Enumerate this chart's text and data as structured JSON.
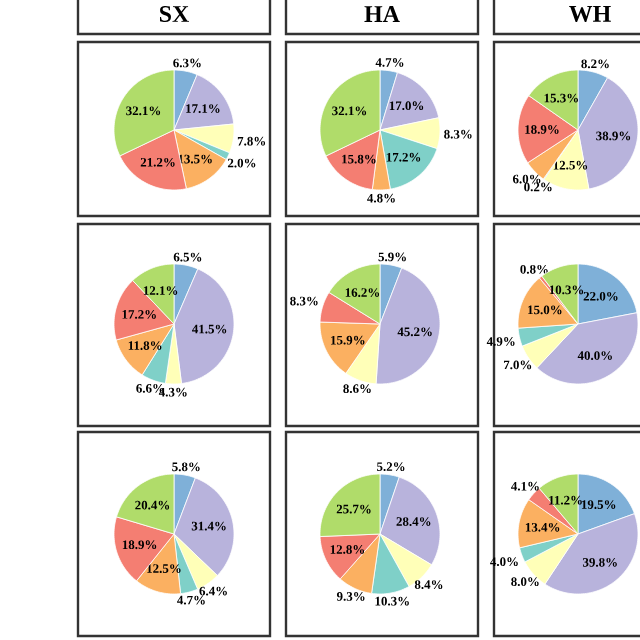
{
  "chart_data": [
    {
      "type": "pie",
      "title": "SX",
      "categories": [
        null,
        null,
        null,
        null,
        null,
        null,
        null
      ],
      "values": [
        6.3,
        17.1,
        7.8,
        2.0,
        13.5,
        21.2,
        32.1
      ],
      "colors": [
        "#7fb0d8",
        "#b8b3dc",
        "#ffffb8",
        "#7fd0c8",
        "#fbb061",
        "#f47e72",
        "#b0dc6a"
      ],
      "value_labels": [
        "6.3%",
        "17.1%",
        "7.8%",
        "2.0%",
        "13.5%",
        "21.2%",
        "32.1%"
      ]
    },
    {
      "type": "pie",
      "title": "HA",
      "categories": [
        null,
        null,
        null,
        null,
        null,
        null,
        null
      ],
      "values": [
        4.7,
        17.0,
        8.3,
        17.2,
        4.8,
        15.8,
        32.1
      ],
      "colors": [
        "#7fb0d8",
        "#b8b3dc",
        "#ffffb8",
        "#7fd0c8",
        "#fbb061",
        "#f47e72",
        "#b0dc6a"
      ],
      "value_labels": [
        "4.7%",
        "17.0%",
        "8.3%",
        "17.2%",
        "4.8%",
        "15.8%",
        "32.1%"
      ]
    },
    {
      "type": "pie",
      "title": "WH",
      "categories": [
        null,
        null,
        null,
        null,
        null,
        null,
        null
      ],
      "values": [
        8.2,
        38.9,
        12.5,
        0.2,
        6.0,
        18.9,
        15.3
      ],
      "colors": [
        "#7fb0d8",
        "#b8b3dc",
        "#ffffb8",
        "#7fd0c8",
        "#fbb061",
        "#f47e72",
        "#b0dc6a"
      ],
      "value_labels": [
        "8.2%",
        "38.9%",
        "12.5%",
        "0.2%",
        "6.0%",
        "18.9%",
        "15.3%"
      ]
    },
    {
      "type": "pie",
      "categories": [
        null,
        null,
        null,
        null,
        null,
        null,
        null
      ],
      "values": [
        6.5,
        41.5,
        4.3,
        6.6,
        11.8,
        17.2,
        12.1
      ],
      "colors": [
        "#7fb0d8",
        "#b8b3dc",
        "#ffffb8",
        "#7fd0c8",
        "#fbb061",
        "#f47e72",
        "#b0dc6a"
      ],
      "value_labels": [
        "6.5%",
        "41.5%",
        "4.3%",
        "6.6%",
        "11.8%",
        "17.2%",
        "12.1%"
      ]
    },
    {
      "type": "pie",
      "categories": [
        null,
        null,
        null,
        null,
        null,
        null
      ],
      "values": [
        5.9,
        45.2,
        8.6,
        15.9,
        8.3,
        16.2
      ],
      "colors": [
        "#7fb0d8",
        "#b8b3dc",
        "#ffffb8",
        "#fbb061",
        "#f47e72",
        "#b0dc6a"
      ],
      "value_labels": [
        "5.9%",
        "45.2%",
        "8.6%",
        "15.9%",
        "8.3%",
        "16.2%"
      ]
    },
    {
      "type": "pie",
      "categories": [
        null,
        null,
        null,
        null,
        null,
        null,
        null
      ],
      "values": [
        22.0,
        40.0,
        7.0,
        4.9,
        15.0,
        0.8,
        10.3
      ],
      "colors": [
        "#7fb0d8",
        "#b8b3dc",
        "#ffffb8",
        "#7fd0c8",
        "#fbb061",
        "#f47e72",
        "#b0dc6a"
      ],
      "value_labels": [
        "22.0%",
        "40.0%",
        "7.0%",
        "4.9%",
        "15.0%",
        "0.8%",
        "10.3%"
      ]
    },
    {
      "type": "pie",
      "categories": [
        null,
        null,
        null,
        null,
        null,
        null,
        null
      ],
      "values": [
        5.8,
        31.4,
        6.4,
        4.7,
        12.5,
        18.9,
        20.4
      ],
      "colors": [
        "#7fb0d8",
        "#b8b3dc",
        "#ffffb8",
        "#7fd0c8",
        "#fbb061",
        "#f47e72",
        "#b0dc6a"
      ],
      "value_labels": [
        "5.8%",
        "31.4%",
        "6.4%",
        "4.7%",
        "12.5%",
        "18.9%",
        "20.4%"
      ]
    },
    {
      "type": "pie",
      "categories": [
        null,
        null,
        null,
        null,
        null,
        null,
        null
      ],
      "values": [
        5.2,
        28.4,
        8.4,
        10.3,
        9.3,
        12.8,
        25.7
      ],
      "colors": [
        "#7fb0d8",
        "#b8b3dc",
        "#ffffb8",
        "#7fd0c8",
        "#fbb061",
        "#f47e72",
        "#b0dc6a"
      ],
      "value_labels": [
        "5.2%",
        "28.4%",
        "8.4%",
        "10.3%",
        "9.3%",
        "12.8%",
        "25.7%"
      ]
    },
    {
      "type": "pie",
      "categories": [
        null,
        null,
        null,
        null,
        null,
        null,
        null
      ],
      "values": [
        19.5,
        39.8,
        8.0,
        4.0,
        13.4,
        4.1,
        11.2
      ],
      "colors": [
        "#7fb0d8",
        "#b8b3dc",
        "#ffffb8",
        "#7fd0c8",
        "#fbb061",
        "#f47e72",
        "#b0dc6a"
      ],
      "value_labels": [
        "19.5%",
        "39.8%",
        "8.0%",
        "4.0%",
        "13.4%",
        "4.1%",
        "11.2%"
      ]
    }
  ]
}
